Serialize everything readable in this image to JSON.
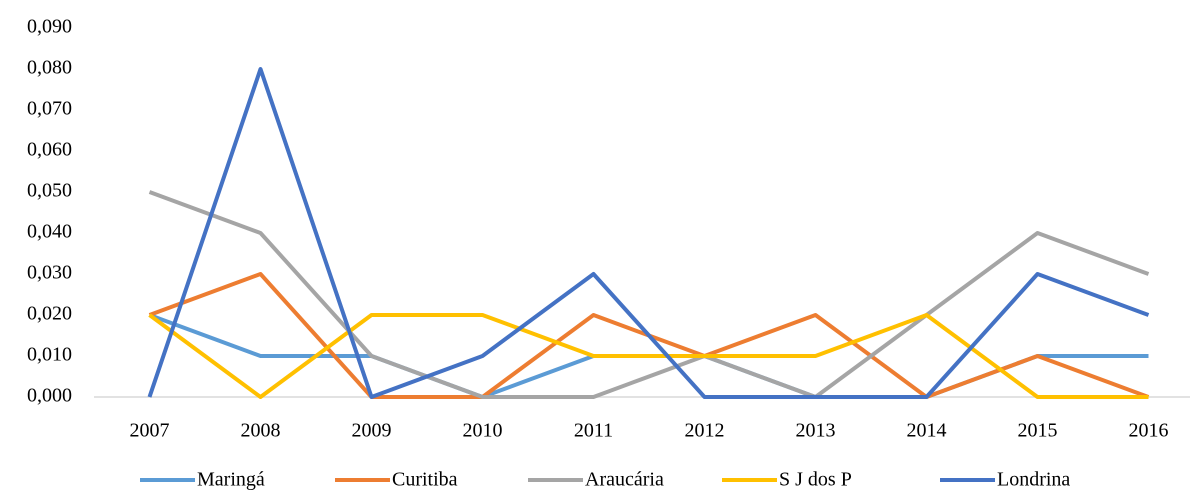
{
  "chart_data": {
    "type": "line",
    "categories": [
      "2007",
      "2008",
      "2009",
      "2010",
      "2011",
      "2012",
      "2013",
      "2014",
      "2015",
      "2016"
    ],
    "series": [
      {
        "name": "Maringá",
        "color": "#5b9bd5",
        "values": [
          0.02,
          0.01,
          0.01,
          0,
          0.01,
          0.01,
          0,
          0,
          0.01,
          0.01
        ]
      },
      {
        "name": "Curitiba",
        "color": "#ed7d31",
        "values": [
          0.02,
          0.03,
          0,
          0,
          0.02,
          0.01,
          0.02,
          0,
          0.01,
          0
        ]
      },
      {
        "name": "Araucária",
        "color": "#a5a5a5",
        "values": [
          0.05,
          0.04,
          0.01,
          0,
          0,
          0.01,
          0,
          0.02,
          0.04,
          0.03
        ]
      },
      {
        "name": "S J dos P",
        "color": "#ffc000",
        "values": [
          0.02,
          0,
          0.02,
          0.02,
          0.01,
          0.01,
          0.01,
          0.02,
          0,
          0
        ]
      },
      {
        "name": "Londrina",
        "color": "#4472c4",
        "values": [
          0,
          0.08,
          0,
          0.01,
          0.03,
          0,
          0,
          0,
          0.03,
          0.02
        ]
      }
    ],
    "ylim": [
      0,
      0.09
    ],
    "yticks": [
      {
        "value": 0,
        "label": "0,000"
      },
      {
        "value": 0.01,
        "label": "0,010"
      },
      {
        "value": 0.02,
        "label": "0,020"
      },
      {
        "value": 0.03,
        "label": "0,030"
      },
      {
        "value": 0.04,
        "label": "0,040"
      },
      {
        "value": 0.05,
        "label": "0,050"
      },
      {
        "value": 0.06,
        "label": "0,060"
      },
      {
        "value": 0.07,
        "label": "0,070"
      },
      {
        "value": 0.08,
        "label": "0,080"
      },
      {
        "value": 0.09,
        "label": "0,090"
      }
    ],
    "grid": false,
    "legend": "bottom"
  }
}
